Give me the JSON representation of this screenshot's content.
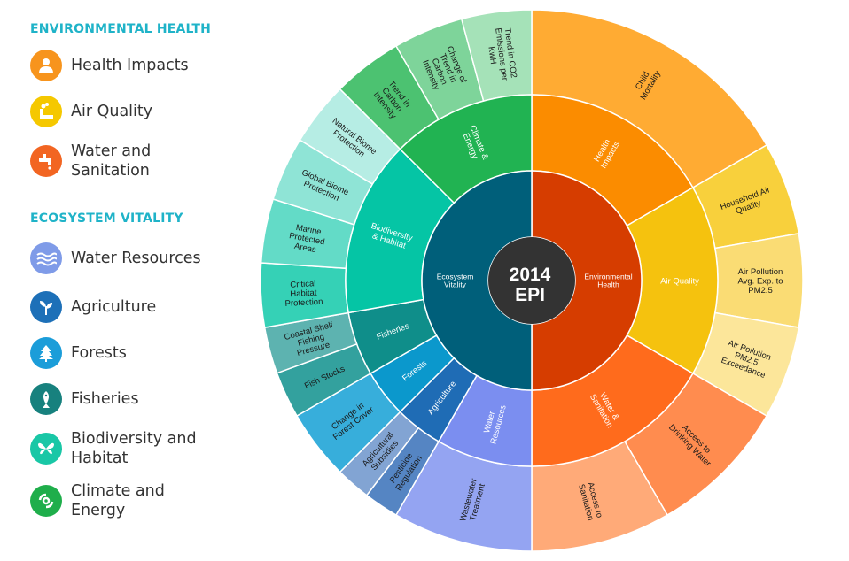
{
  "legend": {
    "env_heading": "ENVIRONMENTAL HEALTH",
    "eco_heading": "ECOSYSTEM VITALITY",
    "items": [
      {
        "label": "Health Impacts",
        "color": "#f7941d",
        "icon": "person-icon"
      },
      {
        "label": "Air Quality",
        "color": "#f5c800",
        "icon": "smokestack-icon"
      },
      {
        "label": "Water and Sanitation",
        "color": "#f26522",
        "icon": "faucet-icon"
      },
      {
        "label": "Water Resources",
        "color": "#7f9be8",
        "icon": "waves-icon"
      },
      {
        "label": "Agriculture",
        "color": "#1d70b8",
        "icon": "sprout-icon"
      },
      {
        "label": "Forests",
        "color": "#1b9dd9",
        "icon": "tree-icon"
      },
      {
        "label": "Fisheries",
        "color": "#17817e",
        "icon": "fish-icon"
      },
      {
        "label": "Biodiversity and Habitat",
        "color": "#19c7a6",
        "icon": "butterfly-icon"
      },
      {
        "label": "Climate and Energy",
        "color": "#1fae4b",
        "icon": "cyclone-icon"
      }
    ]
  },
  "wheel": {
    "center_line1": "2014",
    "center_line2": "EPI",
    "center_color": "#333333",
    "objectives": [
      {
        "label": "Environmental Health",
        "color": "#d63d00",
        "start": 0,
        "end": 180
      },
      {
        "label": "Ecosystem Vitality",
        "color": "#005f7a",
        "start": 180,
        "end": 360
      }
    ],
    "issues": [
      {
        "label": "Health Impacts",
        "color": "#fb8c00",
        "start": 0,
        "end": 60
      },
      {
        "label": "Air Quality",
        "color": "#f5c20e",
        "start": 60,
        "end": 120
      },
      {
        "label": "Water & Sanitation",
        "color": "#ff6b1c",
        "start": 120,
        "end": 180
      },
      {
        "label": "Water Resources",
        "color": "#7b8ef0",
        "start": 180,
        "end": 210
      },
      {
        "label": "Agriculture",
        "color": "#1f6cb5",
        "start": 210,
        "end": 225
      },
      {
        "label": "Forests",
        "color": "#0b98cc",
        "start": 225,
        "end": 240
      },
      {
        "label": "Fisheries",
        "color": "#0f8e8a",
        "start": 240,
        "end": 260
      },
      {
        "label": "Biodiversity & Habitat",
        "color": "#05c5a5",
        "start": 260,
        "end": 315
      },
      {
        "label": "Climate & Energy",
        "color": "#21b352",
        "start": 315,
        "end": 360
      }
    ],
    "indicators": [
      {
        "label": "Child Mortality",
        "color": "#ffab33",
        "start": 0,
        "end": 60
      },
      {
        "label": "Household Air Quality",
        "color": "#f8d03c",
        "start": 60,
        "end": 80
      },
      {
        "label": "Air Pollution Avg. Exp. to PM2.5",
        "color": "#fadc74",
        "start": 80,
        "end": 100
      },
      {
        "label": "Air Pollution PM2.5 Exceedance",
        "color": "#fce69a",
        "start": 100,
        "end": 120
      },
      {
        "label": "Access to Drinking Water",
        "color": "#ff8c4f",
        "start": 120,
        "end": 150
      },
      {
        "label": "Access to Sanitation",
        "color": "#ffaa78",
        "start": 150,
        "end": 180
      },
      {
        "label": "Wastewater Treatment",
        "color": "#94a4f2",
        "start": 180,
        "end": 210
      },
      {
        "label": "Pesticide Regulation",
        "color": "#5585c3",
        "start": 210,
        "end": 217.5
      },
      {
        "label": "Agricultural Subsidies",
        "color": "#82a4d3",
        "start": 217.5,
        "end": 225
      },
      {
        "label": "Change in Forest Cover",
        "color": "#37aedb",
        "start": 225,
        "end": 240
      },
      {
        "label": "Fish Stocks",
        "color": "#33a19e",
        "start": 240,
        "end": 250
      },
      {
        "label": "Coastal Shelf Fishing Pressure",
        "color": "#5db3b0",
        "start": 250,
        "end": 260
      },
      {
        "label": "Critical Habitat Protection",
        "color": "#35d1b6",
        "start": 260,
        "end": 273.75
      },
      {
        "label": "Marine Protected Areas",
        "color": "#63dbc7",
        "start": 273.75,
        "end": 287.5
      },
      {
        "label": "Global Biome Protection",
        "color": "#8fe4d6",
        "start": 287.5,
        "end": 301.25
      },
      {
        "label": "Natural Biome Protection",
        "color": "#b6ede4",
        "start": 301.25,
        "end": 315
      },
      {
        "label": "Trend in Carbon Intensity",
        "color": "#4cc271",
        "start": 315,
        "end": 330
      },
      {
        "label": "Change of Trend in Carbon Intensity",
        "color": "#7ed49a",
        "start": 330,
        "end": 345
      },
      {
        "label": "Trend in CO2 Emissions per KwH",
        "color": "#a5e2b8",
        "start": 345,
        "end": 360
      }
    ]
  }
}
